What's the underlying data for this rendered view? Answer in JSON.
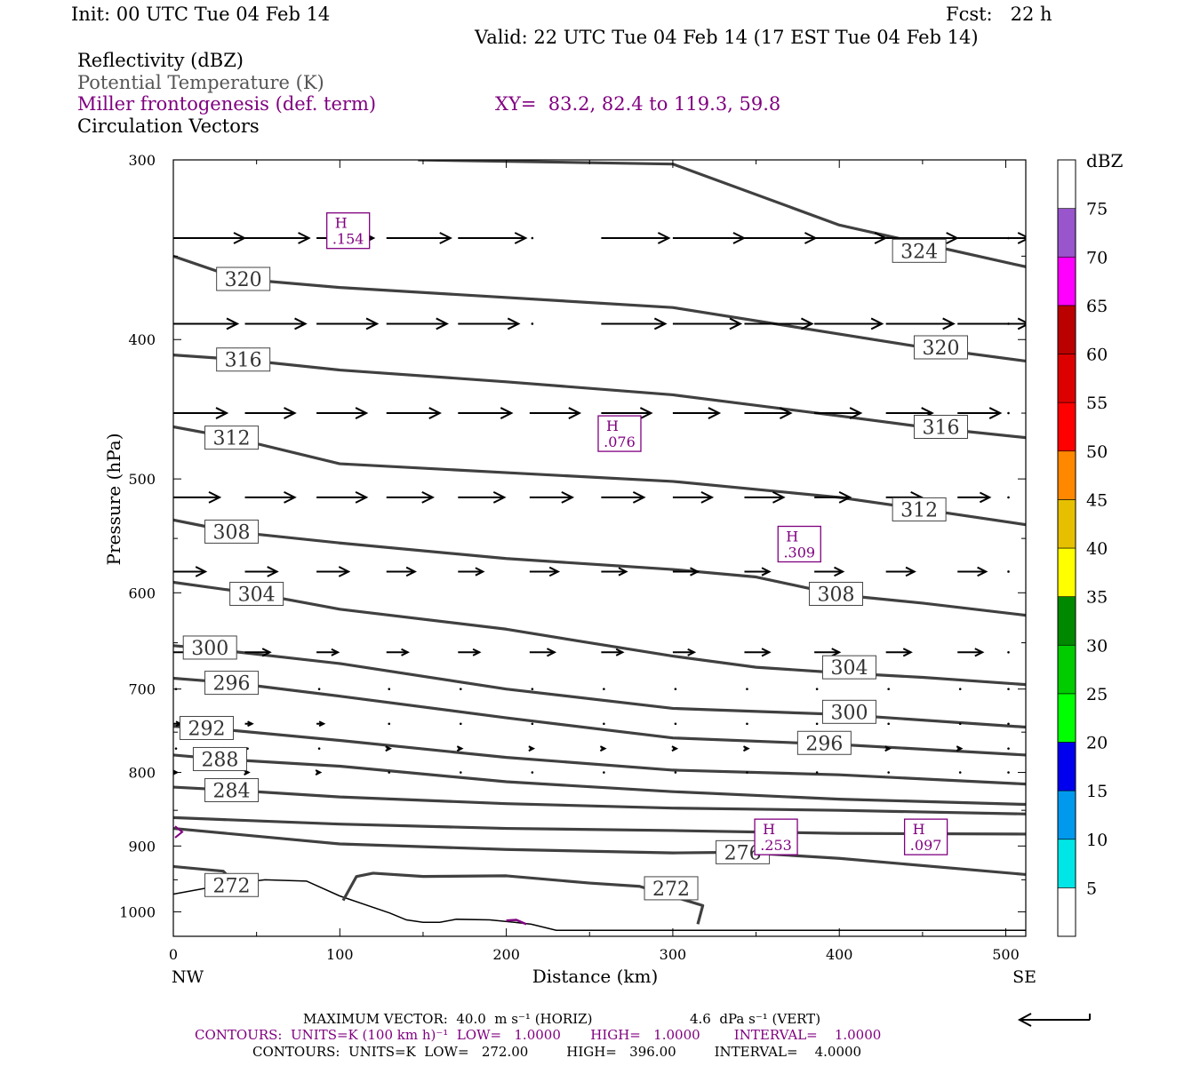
{
  "header": {
    "init": "Init: 00 UTC Tue 04 Feb 14",
    "fcst": "Fcst:   22 h",
    "valid": "Valid: 22 UTC Tue 04 Feb 14 (17 EST Tue 04 Feb 14)",
    "field1": "Reflectivity (dBZ)",
    "field2": "Potential Temperature (K)",
    "field3": "Miller frontogenesis (def. term)",
    "field4": "Circulation Vectors",
    "xy": "XY=  83.2, 82.4 to 119.3, 59.8"
  },
  "colors": {
    "theta": "#404040",
    "fronto": "#800080",
    "vectors": "#000000",
    "dbz_scale": [
      "#00e6e6",
      "#0099ee",
      "#0000ee",
      "#00ff00",
      "#00cc00",
      "#008800",
      "#ffff00",
      "#e6c000",
      "#ff8800",
      "#ff0000",
      "#dd0000",
      "#bb0000",
      "#ff00ff",
      "#9955cc"
    ]
  },
  "chart_data": {
    "type": "cross-section",
    "xlabel": "Distance (km)",
    "ylabel": "Pressure (hPa)",
    "xlim": [
      0,
      512
    ],
    "ylim": [
      1040,
      300
    ],
    "y_scale": "log-pressure",
    "x_ticks": [
      "0",
      "100",
      "200",
      "300",
      "400",
      "500"
    ],
    "y_ticks": [
      "300",
      "400",
      "500",
      "600",
      "700",
      "800",
      "900",
      "1000"
    ],
    "x_end_labels": {
      "left": "NW",
      "right": "SE"
    },
    "colorbar": {
      "title": "dBZ",
      "labels": [
        "75",
        "70",
        "65",
        "60",
        "55",
        "50",
        "45",
        "40",
        "35",
        "30",
        "25",
        "20",
        "15",
        "10",
        "5"
      ]
    },
    "theta_contours": [
      {
        "level": 324,
        "label": "324",
        "points": [
          [
            147,
            300
          ],
          [
            300,
            302
          ],
          [
            400,
            333
          ],
          [
            512,
            356
          ]
        ],
        "labels_at": [
          [
            448,
            347
          ]
        ]
      },
      {
        "level": 320,
        "label": "320",
        "points": [
          [
            0,
            350
          ],
          [
            40,
            363
          ],
          [
            100,
            368
          ],
          [
            300,
            380
          ],
          [
            450,
            405
          ],
          [
            512,
            414
          ]
        ],
        "labels_at": [
          [
            42,
            363
          ],
          [
            461,
            405
          ]
        ]
      },
      {
        "level": 316,
        "label": "316",
        "points": [
          [
            0,
            410
          ],
          [
            40,
            413
          ],
          [
            100,
            420
          ],
          [
            200,
            428
          ],
          [
            300,
            437
          ],
          [
            400,
            452
          ],
          [
            450,
            460
          ],
          [
            512,
            468
          ]
        ],
        "labels_at": [
          [
            42,
            413
          ],
          [
            461,
            460
          ]
        ]
      },
      {
        "level": 312,
        "label": "312",
        "points": [
          [
            0,
            460
          ],
          [
            35,
            468
          ],
          [
            100,
            488
          ],
          [
            200,
            495
          ],
          [
            300,
            502
          ],
          [
            400,
            515
          ],
          [
            450,
            525
          ],
          [
            512,
            538
          ]
        ],
        "labels_at": [
          [
            35,
            468
          ],
          [
            448,
            525
          ]
        ]
      },
      {
        "level": 308,
        "label": "308",
        "points": [
          [
            0,
            534
          ],
          [
            35,
            544
          ],
          [
            100,
            554
          ],
          [
            200,
            568
          ],
          [
            300,
            578
          ],
          [
            350,
            585
          ],
          [
            400,
            602
          ],
          [
            450,
            610
          ],
          [
            512,
            622
          ]
        ],
        "labels_at": [
          [
            35,
            544
          ],
          [
            398,
            601
          ]
        ]
      },
      {
        "level": 304,
        "label": "304",
        "points": [
          [
            0,
            590
          ],
          [
            50,
            601
          ],
          [
            100,
            616
          ],
          [
            200,
            636
          ],
          [
            250,
            650
          ],
          [
            300,
            664
          ],
          [
            350,
            676
          ],
          [
            400,
            682
          ],
          [
            450,
            687
          ],
          [
            512,
            695
          ]
        ],
        "labels_at": [
          [
            50,
            601
          ],
          [
            406,
            676
          ]
        ]
      },
      {
        "level": 300,
        "label": "300",
        "points": [
          [
            0,
            653
          ],
          [
            20,
            656
          ],
          [
            100,
            672
          ],
          [
            200,
            700
          ],
          [
            300,
            722
          ],
          [
            400,
            729
          ],
          [
            512,
            744
          ]
        ],
        "labels_at": [
          [
            22,
            655
          ],
          [
            406,
            726
          ]
        ]
      },
      {
        "level": 296,
        "label": "296",
        "points": [
          [
            0,
            688
          ],
          [
            35,
            693
          ],
          [
            100,
            708
          ],
          [
            200,
            733
          ],
          [
            300,
            757
          ],
          [
            400,
            765
          ],
          [
            512,
            778
          ]
        ],
        "labels_at": [
          [
            35,
            693
          ],
          [
            391,
            763
          ]
        ]
      },
      {
        "level": 292,
        "label": "292",
        "points": [
          [
            0,
            743
          ],
          [
            20,
            745
          ],
          [
            100,
            760
          ],
          [
            200,
            781
          ],
          [
            300,
            797
          ],
          [
            400,
            803
          ],
          [
            512,
            815
          ]
        ],
        "labels_at": [
          [
            20,
            745
          ]
        ]
      },
      {
        "level": 288,
        "label": "288",
        "points": [
          [
            0,
            778
          ],
          [
            28,
            783
          ],
          [
            100,
            792
          ],
          [
            200,
            812
          ],
          [
            300,
            825
          ],
          [
            400,
            835
          ],
          [
            512,
            842
          ]
        ],
        "labels_at": [
          [
            28,
            783
          ]
        ]
      },
      {
        "level": 284,
        "label": "284",
        "points": [
          [
            0,
            819
          ],
          [
            35,
            823
          ],
          [
            100,
            832
          ],
          [
            200,
            841
          ],
          [
            300,
            847
          ],
          [
            400,
            850
          ],
          [
            512,
            855
          ]
        ],
        "labels_at": [
          [
            35,
            823
          ]
        ]
      },
      {
        "level": 280,
        "label": "",
        "points": [
          [
            0,
            860
          ],
          [
            100,
            869
          ],
          [
            200,
            875
          ],
          [
            300,
            878
          ],
          [
            400,
            882
          ],
          [
            512,
            883
          ]
        ],
        "labels_at": []
      },
      {
        "level": 276,
        "label": "276",
        "points": [
          [
            0,
            875
          ],
          [
            100,
            897
          ],
          [
            200,
            905
          ],
          [
            300,
            910
          ],
          [
            340,
            909
          ],
          [
            400,
            918
          ],
          [
            512,
            942
          ]
        ],
        "labels_at": [
          [
            342,
            909
          ]
        ]
      },
      {
        "level": 272,
        "label": "272",
        "points": [
          [
            0,
            930
          ],
          [
            30,
            937
          ],
          [
            40,
            964
          ]
        ],
        "labels_at": [
          [
            35,
            958
          ]
        ]
      },
      {
        "level": 272,
        "label": "272",
        "points": [
          [
            102,
            982
          ],
          [
            110,
            945
          ],
          [
            120,
            940
          ],
          [
            150,
            945
          ],
          [
            200,
            944
          ],
          [
            250,
            955
          ],
          [
            280,
            960
          ],
          [
            318,
            990
          ],
          [
            315,
            1020
          ]
        ],
        "labels_at": [
          [
            299,
            963
          ]
        ]
      }
    ],
    "terrain": [
      [
        0,
        972
      ],
      [
        30,
        958
      ],
      [
        55,
        950
      ],
      [
        80,
        952
      ],
      [
        100,
        975
      ],
      [
        130,
        1002
      ],
      [
        140,
        1013
      ],
      [
        150,
        1017
      ],
      [
        160,
        1017
      ],
      [
        170,
        1012
      ],
      [
        190,
        1013
      ],
      [
        205,
        1017
      ],
      [
        215,
        1020
      ],
      [
        230,
        1030
      ],
      [
        300,
        1030
      ],
      [
        512,
        1030
      ]
    ],
    "frontogenesis_maxima": [
      {
        "label": "H",
        "value": ".154",
        "x": 105,
        "p": 336
      },
      {
        "label": "H",
        "value": ".076",
        "x": 268,
        "p": 465
      },
      {
        "label": "H",
        "value": ".309",
        "x": 376,
        "p": 555
      },
      {
        "label": "H",
        "value": ".253",
        "x": 362,
        "p": 887
      },
      {
        "label": "H",
        "value": ".097",
        "x": 452,
        "p": 887
      }
    ],
    "vectors": {
      "x": [
        0,
        43,
        86,
        128,
        171,
        214,
        257,
        300,
        343,
        385,
        428,
        471,
        500
      ],
      "rows": [
        {
          "p": 340,
          "u": [
            40,
            36,
            32,
            36,
            38,
            0,
            38,
            40,
            40,
            40,
            40,
            40,
            0
          ]
        },
        {
          "p": 390,
          "u": [
            36,
            34,
            34,
            34,
            34,
            0,
            36,
            38,
            38,
            38,
            38,
            40,
            0
          ]
        },
        {
          "p": 450,
          "u": [
            30,
            28,
            28,
            30,
            30,
            28,
            28,
            26,
            26,
            26,
            26,
            24,
            0
          ]
        },
        {
          "p": 515,
          "u": [
            26,
            28,
            28,
            26,
            26,
            24,
            24,
            22,
            22,
            20,
            20,
            18,
            0
          ]
        },
        {
          "p": 580,
          "u": [
            18,
            18,
            18,
            16,
            14,
            16,
            14,
            14,
            14,
            16,
            16,
            16,
            0
          ]
        },
        {
          "p": 660,
          "u": [
            14,
            14,
            12,
            12,
            12,
            14,
            12,
            12,
            14,
            14,
            14,
            14,
            0
          ]
        },
        {
          "p": 700,
          "u": [
            0,
            0,
            0,
            0,
            0,
            0,
            0,
            0,
            0,
            0,
            0,
            0,
            0
          ]
        },
        {
          "p": 740,
          "u": [
            4,
            4,
            4,
            0,
            0,
            0,
            0,
            0,
            0,
            0,
            0,
            0,
            0
          ]
        },
        {
          "p": 770,
          "u": [
            0,
            0,
            0,
            2,
            2,
            2,
            2,
            2,
            2,
            2,
            2,
            2,
            0
          ]
        },
        {
          "p": 800,
          "u": [
            2,
            2,
            2,
            0,
            0,
            0,
            0,
            0,
            0,
            0,
            0,
            0,
            0
          ]
        }
      ]
    }
  },
  "footer": {
    "max_vector": "MAXIMUM VECTOR:  40.0  m s⁻¹ (HORIZ)",
    "vert": "4.6  dPa s⁻¹ (VERT)",
    "contours1": "CONTOURS:  UNITS=K (100 km h)⁻¹  LOW=   1.0000       HIGH=   1.0000        INTERVAL=    1.0000",
    "contours2": "CONTOURS:  UNITS=K  LOW=   272.00         HIGH=   396.00         INTERVAL=    4.0000"
  }
}
